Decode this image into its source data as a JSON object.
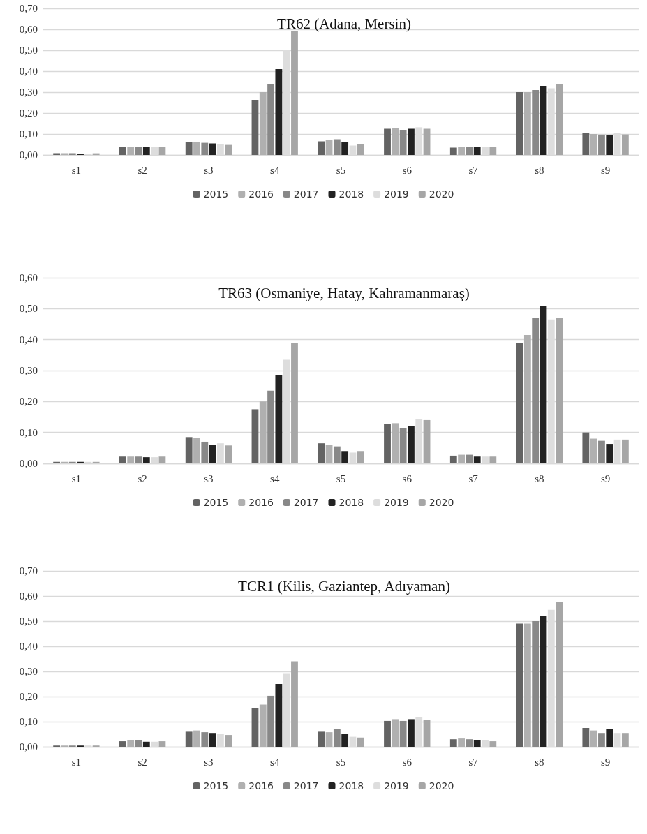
{
  "chart_data": [
    {
      "type": "bar",
      "title": "TR62 (Adana, Mersin)",
      "categories": [
        "s1",
        "s2",
        "s3",
        "s4",
        "s5",
        "s6",
        "s7",
        "s8",
        "s9"
      ],
      "series": [
        {
          "name": "2015",
          "color": "#636363",
          "values": [
            0.008,
            0.04,
            0.06,
            0.26,
            0.065,
            0.125,
            0.035,
            0.3,
            0.105
          ]
        },
        {
          "name": "2016",
          "color": "#b0b0b0",
          "values": [
            0.008,
            0.04,
            0.06,
            0.3,
            0.07,
            0.13,
            0.037,
            0.3,
            0.1
          ]
        },
        {
          "name": "2017",
          "color": "#888888",
          "values": [
            0.008,
            0.04,
            0.058,
            0.34,
            0.075,
            0.12,
            0.04,
            0.31,
            0.097
          ]
        },
        {
          "name": "2018",
          "color": "#222222",
          "values": [
            0.006,
            0.037,
            0.055,
            0.41,
            0.06,
            0.125,
            0.04,
            0.33,
            0.095
          ]
        },
        {
          "name": "2019",
          "color": "#dddddd",
          "values": [
            0.006,
            0.037,
            0.05,
            0.5,
            0.045,
            0.132,
            0.04,
            0.318,
            0.105
          ]
        },
        {
          "name": "2020",
          "color": "#a6a6a6",
          "values": [
            0.008,
            0.037,
            0.048,
            0.59,
            0.05,
            0.125,
            0.04,
            0.338,
            0.098
          ]
        }
      ],
      "ylim": [
        0,
        0.7
      ],
      "yticks": [
        {
          "value": 0,
          "label": "0,00"
        },
        {
          "value": 0.1,
          "label": "0,10"
        },
        {
          "value": 0.2,
          "label": "0,20"
        },
        {
          "value": 0.3,
          "label": "0,30"
        },
        {
          "value": 0.4,
          "label": "0,40"
        },
        {
          "value": 0.5,
          "label": "0,50"
        },
        {
          "value": 0.6,
          "label": "0,60"
        },
        {
          "value": 0.7,
          "label": "0,70"
        }
      ],
      "grid": "y",
      "legend": "bottom"
    },
    {
      "type": "bar",
      "title": "TR63 (Osmaniye, Hatay, Kahramanmaraş)",
      "categories": [
        "s1",
        "s2",
        "s3",
        "s4",
        "s5",
        "s6",
        "s7",
        "s8",
        "s9"
      ],
      "series": [
        {
          "name": "2015",
          "color": "#636363",
          "values": [
            0.005,
            0.022,
            0.085,
            0.175,
            0.065,
            0.128,
            0.025,
            0.39,
            0.1
          ]
        },
        {
          "name": "2016",
          "color": "#b0b0b0",
          "values": [
            0.005,
            0.022,
            0.082,
            0.2,
            0.06,
            0.13,
            0.028,
            0.415,
            0.08
          ]
        },
        {
          "name": "2017",
          "color": "#888888",
          "values": [
            0.005,
            0.022,
            0.07,
            0.235,
            0.055,
            0.115,
            0.028,
            0.47,
            0.073
          ]
        },
        {
          "name": "2018",
          "color": "#222222",
          "values": [
            0.005,
            0.02,
            0.06,
            0.285,
            0.04,
            0.12,
            0.022,
            0.51,
            0.063
          ]
        },
        {
          "name": "2019",
          "color": "#dddddd",
          "values": [
            0.005,
            0.02,
            0.065,
            0.335,
            0.035,
            0.142,
            0.022,
            0.465,
            0.077
          ]
        },
        {
          "name": "2020",
          "color": "#a6a6a6",
          "values": [
            0.005,
            0.022,
            0.058,
            0.39,
            0.04,
            0.14,
            0.022,
            0.47,
            0.077
          ]
        }
      ],
      "ylim": [
        0,
        0.6
      ],
      "yticks": [
        {
          "value": 0,
          "label": "0,00"
        },
        {
          "value": 0.1,
          "label": "0,10"
        },
        {
          "value": 0.2,
          "label": "0,20"
        },
        {
          "value": 0.3,
          "label": "0,30"
        },
        {
          "value": 0.4,
          "label": "0,40"
        },
        {
          "value": 0.5,
          "label": "0,50"
        },
        {
          "value": 0.6,
          "label": "0,60"
        }
      ],
      "grid": "y",
      "legend": "bottom"
    },
    {
      "type": "bar",
      "title": "TCR1 (Kilis, Gaziantep, Adıyaman)",
      "categories": [
        "s1",
        "s2",
        "s3",
        "s4",
        "s5",
        "s6",
        "s7",
        "s8",
        "s9"
      ],
      "series": [
        {
          "name": "2015",
          "color": "#636363",
          "values": [
            0.005,
            0.022,
            0.06,
            0.153,
            0.06,
            0.103,
            0.03,
            0.49,
            0.075
          ]
        },
        {
          "name": "2016",
          "color": "#b0b0b0",
          "values": [
            0.005,
            0.025,
            0.065,
            0.168,
            0.058,
            0.11,
            0.033,
            0.49,
            0.065
          ]
        },
        {
          "name": "2017",
          "color": "#888888",
          "values": [
            0.005,
            0.025,
            0.058,
            0.203,
            0.072,
            0.103,
            0.03,
            0.5,
            0.055
          ]
        },
        {
          "name": "2018",
          "color": "#222222",
          "values": [
            0.005,
            0.02,
            0.055,
            0.25,
            0.05,
            0.11,
            0.025,
            0.52,
            0.07
          ]
        },
        {
          "name": "2019",
          "color": "#dddddd",
          "values": [
            0.005,
            0.02,
            0.05,
            0.29,
            0.04,
            0.117,
            0.025,
            0.545,
            0.055
          ]
        },
        {
          "name": "2020",
          "color": "#a6a6a6",
          "values": [
            0.005,
            0.022,
            0.047,
            0.34,
            0.037,
            0.107,
            0.022,
            0.575,
            0.055
          ]
        }
      ],
      "ylim": [
        0,
        0.7
      ],
      "yticks": [
        {
          "value": 0,
          "label": "0,00"
        },
        {
          "value": 0.1,
          "label": "0,10"
        },
        {
          "value": 0.2,
          "label": "0,20"
        },
        {
          "value": 0.3,
          "label": "0,30"
        },
        {
          "value": 0.4,
          "label": "0,40"
        },
        {
          "value": 0.5,
          "label": "0,50"
        },
        {
          "value": 0.6,
          "label": "0,60"
        },
        {
          "value": 0.7,
          "label": "0,70"
        }
      ],
      "grid": "y",
      "legend": "bottom"
    }
  ]
}
